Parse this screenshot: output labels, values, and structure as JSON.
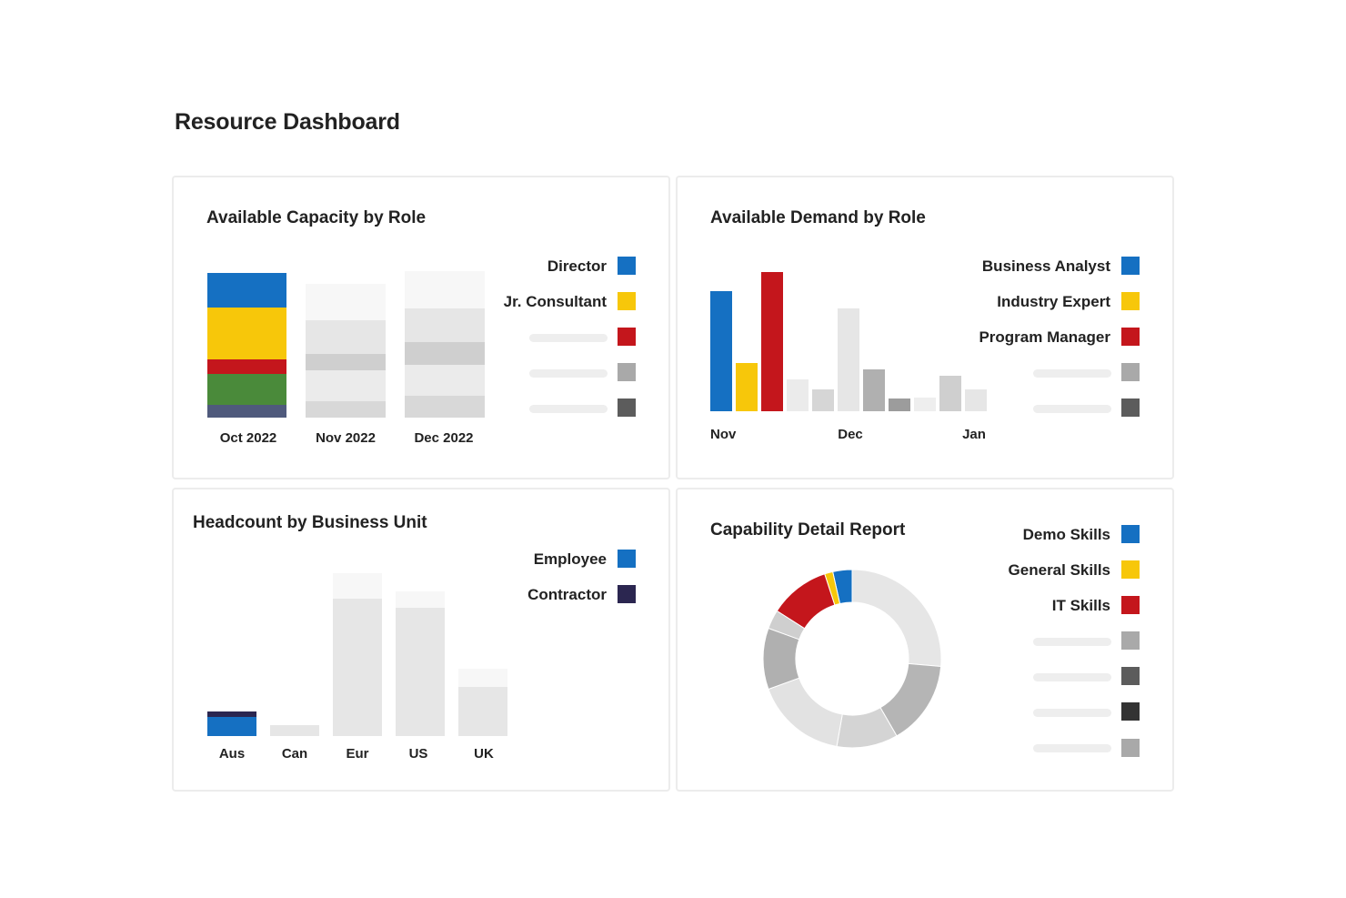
{
  "page": {
    "title": "Resource Dashboard"
  },
  "colors": {
    "blue": "#1570c2",
    "yellow": "#f7c70a",
    "red": "#c4161c",
    "green": "#4a8a3a",
    "slate": "#4f5a7c",
    "navy": "#2b2650",
    "gray_light": "#e4e4e4",
    "gray_mid": "#bdbdbd",
    "gray_dark": "#6a6a6a",
    "gray_black": "#333333",
    "gray_med2": "#a9a9a9"
  },
  "capacity": {
    "title": "Available Capacity by Role",
    "legend": [
      {
        "label": "Director",
        "color": "#1570c2"
      },
      {
        "label": "Jr. Consultant",
        "color": "#f7c70a"
      },
      {
        "label": "",
        "color": "#c4161c"
      },
      {
        "label": "",
        "color": "#a9a9a9"
      },
      {
        "label": "",
        "color": "#5c5c5c"
      }
    ],
    "chart_data": {
      "type": "bar",
      "stacked": true,
      "categories": [
        "Oct 2022",
        "Nov 2022",
        "Dec 2022"
      ],
      "series": [
        {
          "name": "Director",
          "values": [
            38,
            0,
            0
          ]
        },
        {
          "name": "Jr. Consultant",
          "values": [
            57,
            0,
            0
          ]
        }
      ],
      "highlighted_category": "Oct 2022"
    }
  },
  "demand": {
    "title": "Available Demand by Role",
    "legend": [
      {
        "label": "Business Analyst",
        "color": "#1570c2"
      },
      {
        "label": "Industry Expert",
        "color": "#f7c70a"
      },
      {
        "label": "Program Manager",
        "color": "#c4161c"
      },
      {
        "label": "",
        "color": "#a9a9a9"
      },
      {
        "label": "",
        "color": "#5c5c5c"
      }
    ],
    "chart_data": {
      "type": "bar",
      "categories": [
        "Nov",
        "Dec",
        "Jan"
      ],
      "series": [
        {
          "name": "Business Analyst",
          "values": [
            130,
            0,
            0
          ]
        },
        {
          "name": "Industry Expert",
          "values": [
            52,
            0,
            0
          ]
        },
        {
          "name": "Program Manager",
          "values": [
            150,
            0,
            0
          ]
        }
      ]
    }
  },
  "headcount": {
    "title": "Headcount by Business Unit",
    "legend": [
      {
        "label": "Employee",
        "color": "#1570c2"
      },
      {
        "label": "Contractor",
        "color": "#2b2650"
      }
    ],
    "chart_data": {
      "type": "bar",
      "stacked": true,
      "categories": [
        "Aus",
        "Can",
        "Eur",
        "US",
        "UK"
      ],
      "series": [
        {
          "name": "Employee",
          "values": [
            20,
            0,
            0,
            0,
            0
          ]
        },
        {
          "name": "Contractor",
          "values": [
            5,
            0,
            0,
            0,
            0
          ]
        }
      ],
      "highlighted_category": "Aus"
    }
  },
  "capability": {
    "title": "Capability Detail Report",
    "legend": [
      {
        "label": "Demo Skills",
        "color": "#1570c2"
      },
      {
        "label": "General Skills",
        "color": "#f7c70a"
      },
      {
        "label": "IT Skills",
        "color": "#c4161c"
      },
      {
        "label": "",
        "color": "#a9a9a9"
      },
      {
        "label": "",
        "color": "#5c5c5c"
      },
      {
        "label": "",
        "color": "#333333"
      },
      {
        "label": "",
        "color": "#a9a9a9"
      }
    ],
    "chart_data": {
      "type": "pie",
      "donut": true,
      "slices": [
        {
          "name": "Demo Skills",
          "value": 3.5
        },
        {
          "name": "General Skills",
          "value": 1.5
        },
        {
          "name": "IT Skills",
          "value": 11
        }
      ]
    }
  }
}
